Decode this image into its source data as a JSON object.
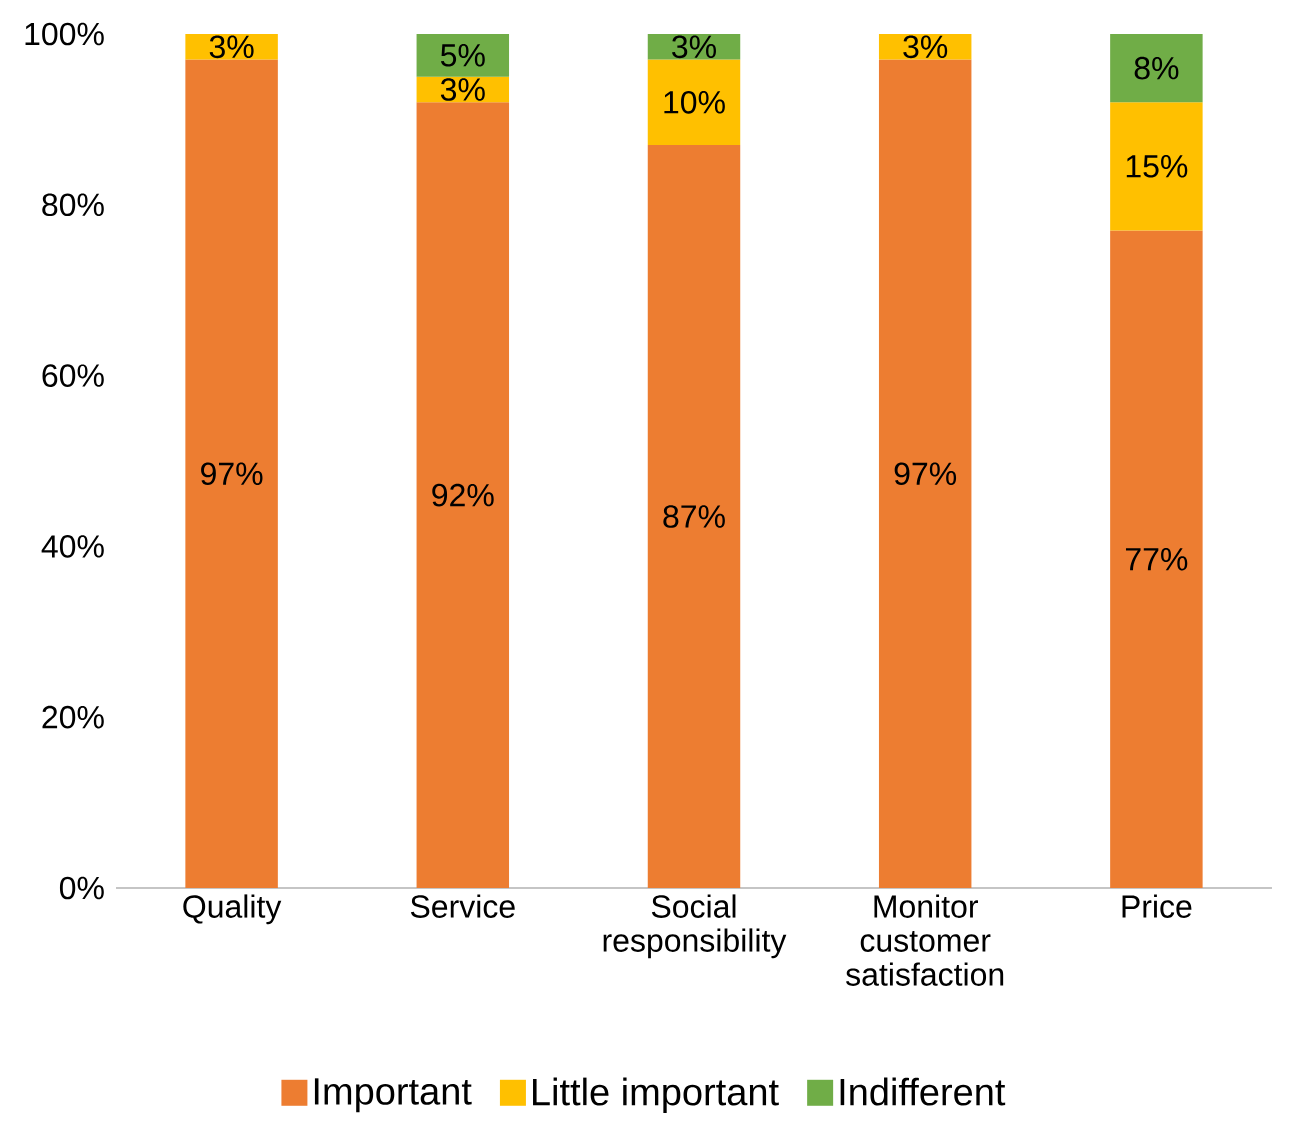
{
  "chart_data": {
    "type": "bar",
    "stacked": true,
    "categories": [
      "Quality",
      "Service",
      "Social responsibility",
      "Monitor customer satisfaction",
      "Price"
    ],
    "series": [
      {
        "name": "Important",
        "color": "#ed7d31",
        "values": [
          97,
          92,
          87,
          97,
          77
        ],
        "value_labels": [
          "97%",
          "92%",
          "87%",
          "97%",
          "77%"
        ]
      },
      {
        "name": "Little important",
        "color": "#ffc000",
        "values": [
          3,
          3,
          10,
          3,
          15
        ],
        "value_labels": [
          "3%",
          "3%",
          "10%",
          "3%",
          "15%"
        ]
      },
      {
        "name": "Indifferent",
        "color": "#70ad47",
        "values": [
          null,
          5,
          3,
          null,
          8
        ],
        "value_labels": [
          null,
          "5%",
          "3%",
          null,
          "8%"
        ]
      }
    ],
    "ylim": [
      0,
      100
    ],
    "yticks": [
      {
        "value": 0,
        "label": "0%"
      },
      {
        "value": 20,
        "label": "20%"
      },
      {
        "value": 40,
        "label": "40%"
      },
      {
        "value": 60,
        "label": "60%"
      },
      {
        "value": 80,
        "label": "80%"
      },
      {
        "value": 100,
        "label": "100%"
      }
    ],
    "legend": "bottom"
  }
}
